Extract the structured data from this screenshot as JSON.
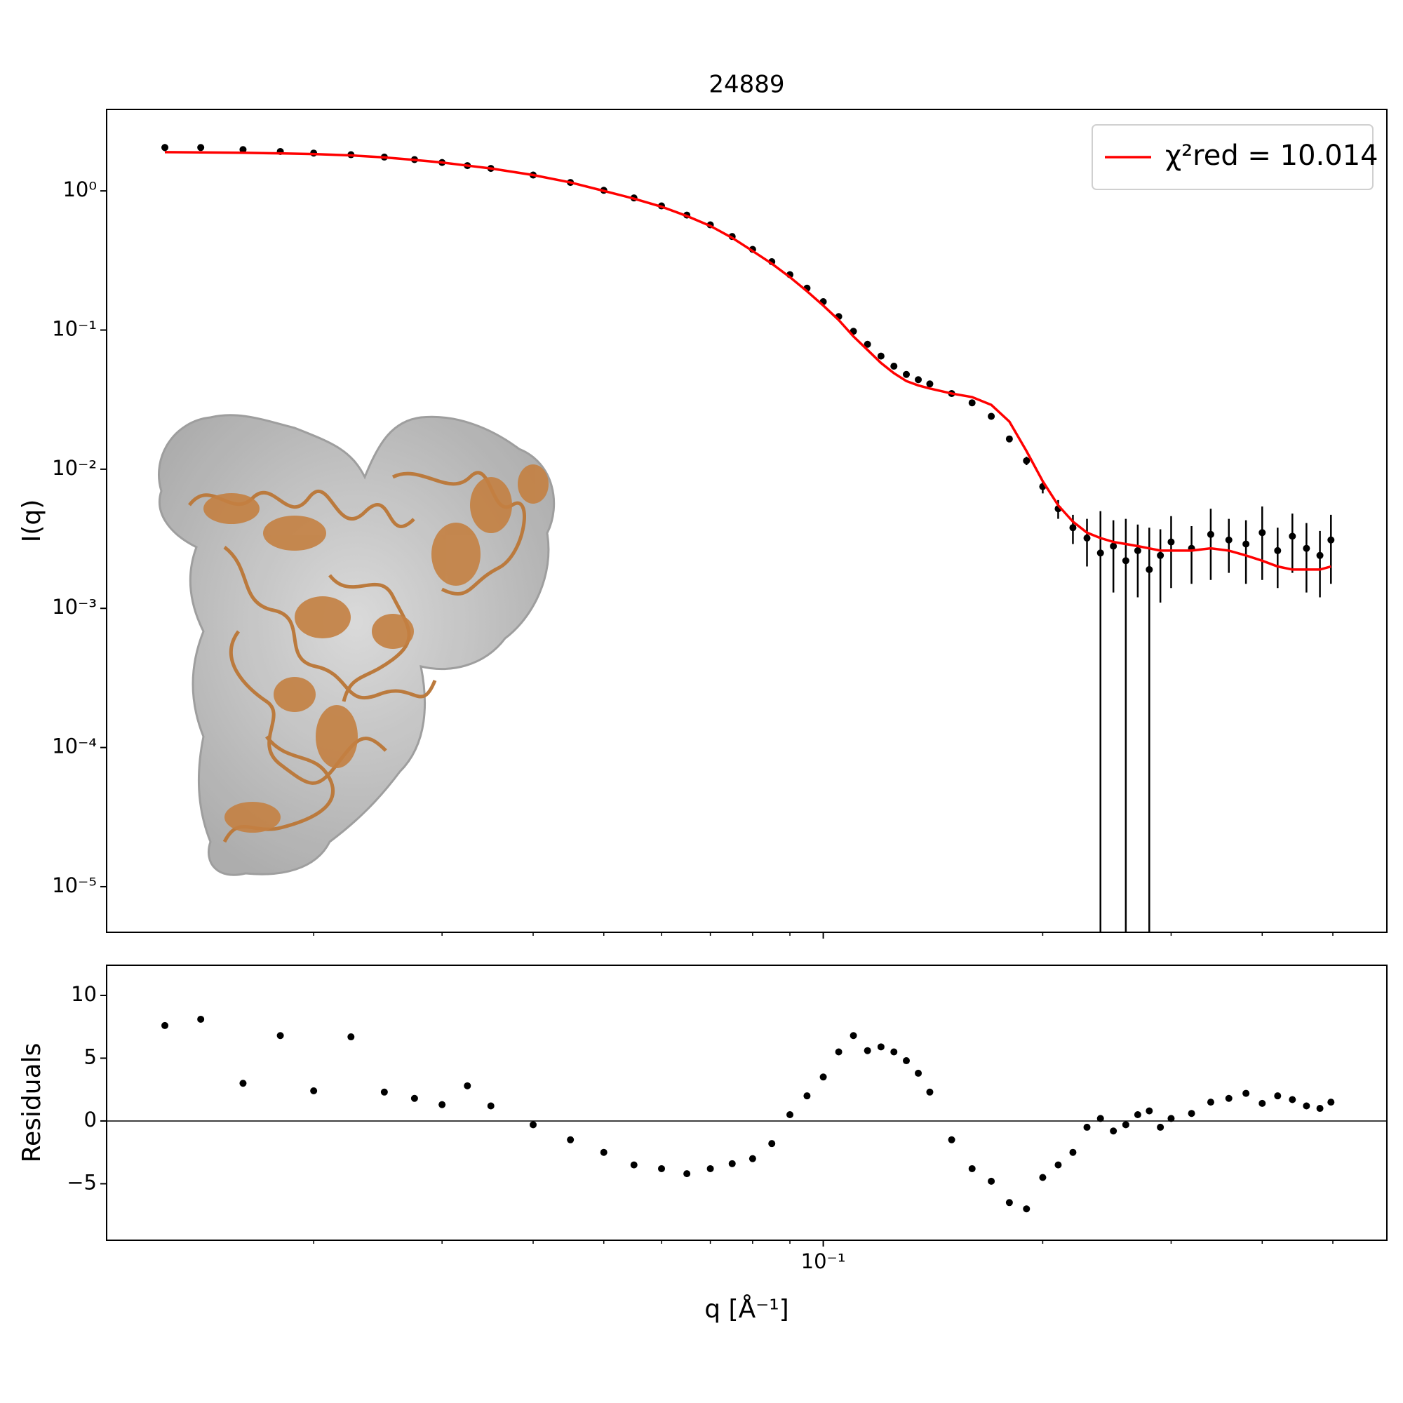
{
  "chart_data": [
    {
      "type": "scatter",
      "title": "24889",
      "ylabel": "I(q)",
      "yscale": "log",
      "ylim": [
        4.7e-06,
        3.85
      ],
      "yticks": [
        {
          "value": 1,
          "label": "10⁰"
        },
        {
          "value": 0.1,
          "label": "10⁻¹"
        },
        {
          "value": 0.01,
          "label": "10⁻²"
        },
        {
          "value": 0.001,
          "label": "10⁻³"
        },
        {
          "value": 0.0001,
          "label": "10⁻⁴"
        },
        {
          "value": 1e-05,
          "label": "10⁻⁵"
        }
      ],
      "legend": "upper right",
      "x": [
        0.0125,
        0.014,
        0.016,
        0.018,
        0.02,
        0.0225,
        0.025,
        0.0275,
        0.03,
        0.0325,
        0.035,
        0.04,
        0.045,
        0.05,
        0.055,
        0.06,
        0.065,
        0.07,
        0.075,
        0.08,
        0.085,
        0.09,
        0.095,
        0.1,
        0.105,
        0.11,
        0.115,
        0.12,
        0.125,
        0.13,
        0.135,
        0.14,
        0.15,
        0.16,
        0.17,
        0.18,
        0.19,
        0.2,
        0.21,
        0.22,
        0.23,
        0.24,
        0.25,
        0.26,
        0.27,
        0.28,
        0.29,
        0.3,
        0.32,
        0.34,
        0.36,
        0.38,
        0.4,
        0.42,
        0.44,
        0.46,
        0.48,
        0.497
      ],
      "series": [
        {
          "style": "errorbar",
          "color": "#000000",
          "values": [
            2.05,
            2.05,
            1.98,
            1.92,
            1.87,
            1.82,
            1.75,
            1.68,
            1.6,
            1.52,
            1.45,
            1.3,
            1.15,
            1.01,
            0.89,
            0.78,
            0.67,
            0.57,
            0.47,
            0.38,
            0.31,
            0.25,
            0.2,
            0.16,
            0.125,
            0.098,
            0.079,
            0.065,
            0.055,
            0.048,
            0.044,
            0.041,
            0.035,
            0.03,
            0.024,
            0.0165,
            0.0115,
            0.0075,
            0.0052,
            0.0038,
            0.0032,
            0.0025,
            0.0028,
            0.0022,
            0.0026,
            0.0019,
            0.0024,
            0.003,
            0.0027,
            0.0034,
            0.0031,
            0.0029,
            0.0035,
            0.0026,
            0.0033,
            0.0027,
            0.0024,
            0.0031
          ],
          "errors": [
            0.12,
            0.1,
            0.08,
            0.07,
            0.06,
            0.05,
            0.04,
            0.035,
            0.03,
            0.025,
            0.02,
            0.018,
            0.015,
            0.012,
            0.01,
            0.008,
            0.007,
            0.006,
            0.005,
            0.004,
            0.0035,
            0.003,
            0.0025,
            0.002,
            0.0017,
            0.0015,
            0.0013,
            0.0012,
            0.0011,
            0.001,
            0.001,
            0.001,
            0.0009,
            0.0009,
            0.0009,
            0.0008,
            0.0008,
            0.0008,
            0.0008,
            0.0009,
            0.0012,
            0.0025,
            0.0015,
            0.0022,
            0.0014,
            0.0019,
            0.0013,
            0.0016,
            0.0012,
            0.0018,
            0.0013,
            0.0014,
            0.0019,
            0.0012,
            0.0015,
            0.0014,
            0.0012,
            0.0016
          ]
        },
        {
          "style": "line",
          "name": "χ²red = 10.014",
          "color": "#ff0000",
          "values": [
            1.9,
            1.89,
            1.88,
            1.86,
            1.84,
            1.8,
            1.74,
            1.67,
            1.6,
            1.52,
            1.45,
            1.3,
            1.15,
            1.0,
            0.88,
            0.77,
            0.66,
            0.56,
            0.46,
            0.37,
            0.3,
            0.24,
            0.19,
            0.15,
            0.118,
            0.09,
            0.072,
            0.058,
            0.049,
            0.043,
            0.04,
            0.038,
            0.035,
            0.033,
            0.029,
            0.022,
            0.0135,
            0.0082,
            0.0055,
            0.0042,
            0.0035,
            0.0032,
            0.003,
            0.0029,
            0.0028,
            0.0027,
            0.0026,
            0.0026,
            0.0026,
            0.0027,
            0.0026,
            0.0024,
            0.0022,
            0.002,
            0.0019,
            0.0019,
            0.0019,
            0.002
          ]
        }
      ]
    },
    {
      "type": "scatter",
      "ylabel": "Residuals",
      "xlabel": "q [Å⁻¹]",
      "xscale": "log",
      "xlim": [
        0.0104,
        0.593
      ],
      "xticks": [
        {
          "value": 0.1,
          "label": "10⁻¹"
        }
      ],
      "xminorticks": [
        0.02,
        0.03,
        0.04,
        0.05,
        0.06,
        0.07,
        0.08,
        0.09,
        0.2,
        0.3,
        0.4,
        0.5
      ],
      "ylim": [
        -9.5,
        12.4
      ],
      "yticks": [
        {
          "value": -5,
          "label": "−5"
        },
        0,
        5,
        10
      ],
      "hline": 0,
      "x": [
        0.0125,
        0.014,
        0.016,
        0.018,
        0.02,
        0.0225,
        0.025,
        0.0275,
        0.03,
        0.0325,
        0.035,
        0.04,
        0.045,
        0.05,
        0.055,
        0.06,
        0.065,
        0.07,
        0.075,
        0.08,
        0.085,
        0.09,
        0.095,
        0.1,
        0.105,
        0.11,
        0.115,
        0.12,
        0.125,
        0.13,
        0.135,
        0.14,
        0.15,
        0.16,
        0.17,
        0.18,
        0.19,
        0.2,
        0.21,
        0.22,
        0.23,
        0.24,
        0.25,
        0.26,
        0.27,
        0.28,
        0.29,
        0.3,
        0.32,
        0.34,
        0.36,
        0.38,
        0.4,
        0.42,
        0.44,
        0.46,
        0.48,
        0.497
      ],
      "series": [
        {
          "style": "scatter",
          "color": "#000000",
          "values": [
            7.6,
            8.1,
            3.0,
            6.8,
            2.4,
            6.7,
            2.3,
            1.8,
            1.3,
            2.8,
            1.2,
            -0.3,
            -1.5,
            -2.5,
            -3.5,
            -3.8,
            -4.2,
            -3.8,
            -3.4,
            -3.0,
            -1.8,
            0.5,
            2.0,
            3.5,
            5.5,
            6.8,
            5.6,
            5.9,
            5.5,
            4.8,
            3.8,
            2.3,
            -1.5,
            -3.8,
            -4.8,
            -6.5,
            -7.0,
            -4.5,
            -3.5,
            -2.5,
            -0.5,
            0.2,
            -0.8,
            -0.3,
            0.5,
            0.8,
            -0.5,
            0.2,
            0.6,
            1.5,
            1.8,
            2.2,
            1.4,
            2.0,
            1.7,
            1.2,
            1.0,
            1.5
          ]
        }
      ]
    }
  ]
}
